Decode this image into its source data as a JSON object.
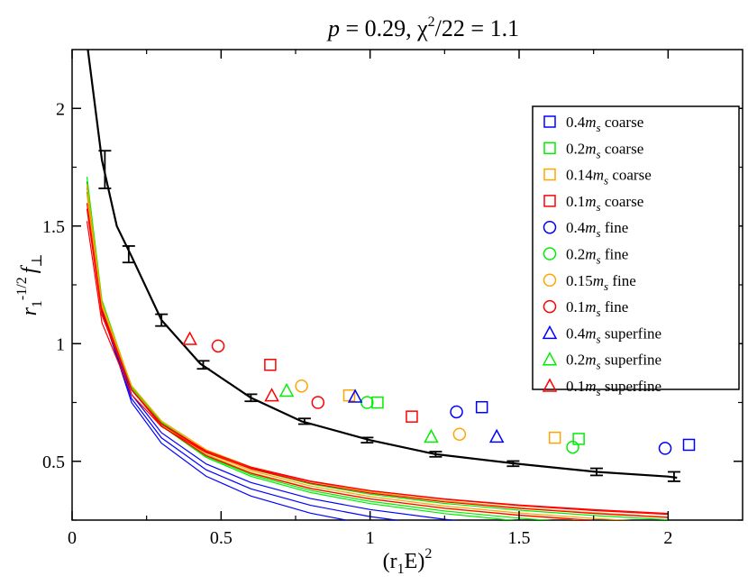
{
  "chart_data": {
    "type": "line",
    "title": {
      "var": "p",
      "value": "0.29",
      "chi_sym": "χ",
      "chi_exp": "2",
      "chi_den": "/22",
      "chi_value": "1.1"
    },
    "xlabel": {
      "base": "(r",
      "sub": "1",
      "rest": "E)",
      "sup": "2"
    },
    "ylabel": {
      "r": "r",
      "sub": "1",
      "sup": "-1/2",
      "f": "f",
      "perp": "⊥"
    },
    "xlim": [
      0,
      2.25
    ],
    "ylim": [
      0.25,
      2.25
    ],
    "xticks": [
      0,
      0.5,
      1,
      1.5,
      2
    ],
    "xtick_labels": [
      "0",
      "0.5",
      "1",
      "1.5",
      "2"
    ],
    "yticks": [
      0.5,
      1,
      1.5,
      2
    ],
    "ytick_labels": [
      "0.5",
      "1",
      "1.5",
      "2"
    ],
    "legend_position": "top-right",
    "colors": {
      "blue": "#0000ff",
      "green": "#00ee00",
      "orange": "#ffa500",
      "red": "#ff0000",
      "black": "#000000"
    },
    "legend": [
      {
        "mass": "0.4",
        "sub": "s",
        "label": "coarse",
        "marker": "square",
        "color": "#0000ff"
      },
      {
        "mass": "0.2",
        "sub": "s",
        "label": "coarse",
        "marker": "square",
        "color": "#00ee00"
      },
      {
        "mass": "0.14",
        "sub": "s",
        "label": "coarse",
        "marker": "square",
        "color": "#ffa500"
      },
      {
        "mass": "0.1",
        "sub": "s",
        "label": "coarse",
        "marker": "square",
        "color": "#ff0000"
      },
      {
        "mass": "0.4",
        "sub": "s",
        "label": "fine",
        "marker": "circle",
        "color": "#0000ff"
      },
      {
        "mass": "0.2",
        "sub": "s",
        "label": "fine",
        "marker": "circle",
        "color": "#00ee00"
      },
      {
        "mass": "0.15",
        "sub": "s",
        "label": "fine",
        "marker": "circle",
        "color": "#ffa500"
      },
      {
        "mass": "0.1",
        "sub": "s",
        "label": "fine",
        "marker": "circle",
        "color": "#ff0000"
      },
      {
        "mass": "0.4",
        "sub": "s",
        "label": "superfine",
        "marker": "triangle",
        "color": "#0000ff"
      },
      {
        "mass": "0.2",
        "sub": "s",
        "label": "superfine",
        "marker": "triangle",
        "color": "#00ee00"
      },
      {
        "mass": "0.1",
        "sub": "s",
        "label": "superfine",
        "marker": "triangle",
        "color": "#ff0000"
      }
    ],
    "curve_x": [
      0.05,
      0.1,
      0.2,
      0.3,
      0.45,
      0.6,
      0.8,
      1.0,
      1.25,
      1.5,
      1.75,
      2.0
    ],
    "series_curves": [
      {
        "name": "blue-top",
        "color": "#0000ff",
        "a": 0.42,
        "b": 0.39
      },
      {
        "name": "blue-2",
        "color": "#0000ff",
        "a": 0.405,
        "b": 0.34
      },
      {
        "name": "blue-3",
        "color": "#0000ff",
        "a": 0.395,
        "b": 0.3
      },
      {
        "name": "green-1",
        "color": "#00ee00",
        "a": 0.4,
        "b": 0.28
      },
      {
        "name": "green-2",
        "color": "#00ee00",
        "a": 0.39,
        "b": 0.26
      },
      {
        "name": "orange-1",
        "color": "#ffa500",
        "a": 0.385,
        "b": 0.245
      },
      {
        "name": "orange-2",
        "color": "#ffa500",
        "a": 0.38,
        "b": 0.23
      },
      {
        "name": "red-1",
        "color": "#ff0000",
        "a": 0.375,
        "b": 0.235
      },
      {
        "name": "green-3",
        "color": "#00ee00",
        "a": 0.37,
        "b": 0.21
      },
      {
        "name": "orange-3",
        "color": "#ffa500",
        "a": 0.365,
        "b": 0.195
      },
      {
        "name": "red-2",
        "color": "#ff0000",
        "a": 0.355,
        "b": 0.19
      },
      {
        "name": "red-3",
        "color": "#ff0000",
        "a": 0.345,
        "b": 0.17
      },
      {
        "name": "red-4",
        "color": "#ff0000",
        "a": 0.33,
        "b": 0.155
      }
    ],
    "black_curve": {
      "color": "#000000",
      "x": [
        0.05,
        0.1,
        0.15,
        0.2,
        0.3,
        0.43,
        0.6,
        0.77,
        1.0,
        1.22,
        1.49,
        1.76,
        2.0,
        2.03
      ],
      "y": [
        2.28,
        1.78,
        1.5,
        1.37,
        1.1,
        0.915,
        0.77,
        0.67,
        0.59,
        0.53,
        0.49,
        0.455,
        0.435,
        0.43
      ]
    },
    "black_errors": [
      {
        "x": 0.11,
        "y": 1.74,
        "err": 0.08
      },
      {
        "x": 0.19,
        "y": 1.38,
        "err": 0.035
      },
      {
        "x": 0.3,
        "y": 1.1,
        "err": 0.025
      },
      {
        "x": 0.44,
        "y": 0.91,
        "err": 0.017
      },
      {
        "x": 0.6,
        "y": 0.77,
        "err": 0.015
      },
      {
        "x": 0.78,
        "y": 0.67,
        "err": 0.012
      },
      {
        "x": 0.99,
        "y": 0.59,
        "err": 0.011
      },
      {
        "x": 1.22,
        "y": 0.53,
        "err": 0.011
      },
      {
        "x": 1.48,
        "y": 0.49,
        "err": 0.011
      },
      {
        "x": 1.76,
        "y": 0.455,
        "err": 0.015
      },
      {
        "x": 2.02,
        "y": 0.435,
        "err": 0.02
      }
    ],
    "points": [
      {
        "x": 2.07,
        "y": 0.57,
        "marker": "square",
        "color": "#0000ff"
      },
      {
        "x": 1.375,
        "y": 0.73,
        "marker": "square",
        "color": "#0000ff"
      },
      {
        "x": 1.7,
        "y": 0.595,
        "marker": "square",
        "color": "#00ee00"
      },
      {
        "x": 1.025,
        "y": 0.75,
        "marker": "square",
        "color": "#00ee00"
      },
      {
        "x": 1.62,
        "y": 0.6,
        "marker": "square",
        "color": "#ffa500"
      },
      {
        "x": 0.93,
        "y": 0.78,
        "marker": "square",
        "color": "#ffa500"
      },
      {
        "x": 1.14,
        "y": 0.69,
        "marker": "square",
        "color": "#ff0000"
      },
      {
        "x": 0.665,
        "y": 0.91,
        "marker": "square",
        "color": "#ff0000"
      },
      {
        "x": 1.29,
        "y": 0.71,
        "marker": "circle",
        "color": "#0000ff"
      },
      {
        "x": 1.99,
        "y": 0.555,
        "marker": "circle",
        "color": "#0000ff"
      },
      {
        "x": 0.99,
        "y": 0.75,
        "marker": "circle",
        "color": "#00ee00"
      },
      {
        "x": 1.68,
        "y": 0.56,
        "marker": "circle",
        "color": "#00ee00"
      },
      {
        "x": 0.77,
        "y": 0.82,
        "marker": "circle",
        "color": "#ffa500"
      },
      {
        "x": 1.3,
        "y": 0.615,
        "marker": "circle",
        "color": "#ffa500"
      },
      {
        "x": 0.49,
        "y": 0.99,
        "marker": "circle",
        "color": "#ff0000"
      },
      {
        "x": 0.825,
        "y": 0.75,
        "marker": "circle",
        "color": "#ff0000"
      },
      {
        "x": 0.95,
        "y": 0.775,
        "marker": "triangle",
        "color": "#0000ff"
      },
      {
        "x": 1.425,
        "y": 0.605,
        "marker": "triangle",
        "color": "#0000ff"
      },
      {
        "x": 0.72,
        "y": 0.8,
        "marker": "triangle",
        "color": "#00ee00"
      },
      {
        "x": 1.205,
        "y": 0.605,
        "marker": "triangle",
        "color": "#00ee00"
      },
      {
        "x": 0.395,
        "y": 1.02,
        "marker": "triangle",
        "color": "#ff0000"
      },
      {
        "x": 0.67,
        "y": 0.78,
        "marker": "triangle",
        "color": "#ff0000"
      }
    ]
  }
}
